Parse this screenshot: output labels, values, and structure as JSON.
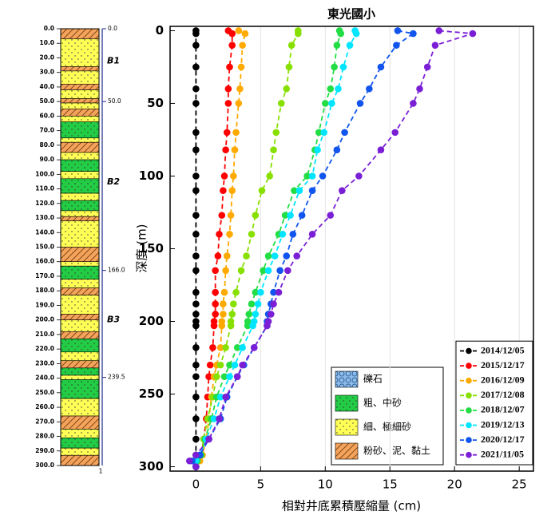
{
  "chart_data": [
    {
      "type": "strata",
      "ylim": [
        0,
        300
      ],
      "yticks": [
        {
          "value": 0,
          "label": "0.0"
        },
        {
          "value": 10,
          "label": "10.0"
        },
        {
          "value": 20,
          "label": "20.0"
        },
        {
          "value": 30,
          "label": "30.0"
        },
        {
          "value": 40,
          "label": "40.0"
        },
        {
          "value": 50,
          "label": "50.0"
        },
        {
          "value": 60,
          "label": "60.0"
        },
        {
          "value": 70,
          "label": "70.0"
        },
        {
          "value": 80,
          "label": "80.0"
        },
        {
          "value": 90,
          "label": "90.0"
        },
        {
          "value": 100,
          "label": "100.0"
        },
        {
          "value": 110,
          "label": "110.0"
        },
        {
          "value": 120,
          "label": "120.0"
        },
        {
          "value": 130,
          "label": "130.0"
        },
        {
          "value": 140,
          "label": "140.0"
        },
        {
          "value": 150,
          "label": "150.0"
        },
        {
          "value": 160,
          "label": "160.0"
        },
        {
          "value": 170,
          "label": "170.0"
        },
        {
          "value": 180,
          "label": "180.0"
        },
        {
          "value": 190,
          "label": "190.0"
        },
        {
          "value": 200,
          "label": "200.0"
        },
        {
          "value": 210,
          "label": "210.0"
        },
        {
          "value": 220,
          "label": "220.0"
        },
        {
          "value": 230,
          "label": "230.0"
        },
        {
          "value": 240,
          "label": "240.0"
        },
        {
          "value": 250,
          "label": "250.0"
        },
        {
          "value": 260,
          "label": "260.0"
        },
        {
          "value": 270,
          "label": "270.0"
        },
        {
          "value": 280,
          "label": "280.0"
        },
        {
          "value": 290,
          "label": "290.0"
        },
        {
          "value": 300,
          "label": "300.0"
        }
      ],
      "boundary_ticks": [
        {
          "value": 0,
          "label": "0.0"
        },
        {
          "value": 50,
          "label": "50.0"
        },
        {
          "value": 166,
          "label": "166.0"
        },
        {
          "value": 239.5,
          "label": "239.5"
        }
      ],
      "units": [
        {
          "label": "B1",
          "top": 0,
          "bottom": 50
        },
        {
          "label": "B2",
          "top": 50,
          "bottom": 166
        },
        {
          "label": "B3",
          "top": 166,
          "bottom": 239.5
        }
      ],
      "bottom_label": "1",
      "lithology_legend": [
        {
          "label": "礫石",
          "color": "#8cbbe8",
          "pattern": "circles"
        },
        {
          "label": "粗、中砂",
          "color": "#22cc44",
          "pattern": "dots"
        },
        {
          "label": "細、極細砂",
          "color": "#ffff55",
          "pattern": "dots"
        },
        {
          "label": "粉砂、泥、黏土",
          "color": "#f5a35a",
          "pattern": "hatch"
        }
      ],
      "layers": [
        {
          "top": 0,
          "bottom": 7,
          "lithology": "粉砂、泥、黏土"
        },
        {
          "top": 7,
          "bottom": 26,
          "lithology": "細、極細砂"
        },
        {
          "top": 26,
          "bottom": 29,
          "lithology": "粉砂、泥、黏土"
        },
        {
          "top": 29,
          "bottom": 38,
          "lithology": "細、極細砂"
        },
        {
          "top": 38,
          "bottom": 42,
          "lithology": "粉砂、泥、黏土"
        },
        {
          "top": 42,
          "bottom": 48,
          "lithology": "細、極細砂"
        },
        {
          "top": 48,
          "bottom": 51,
          "lithology": "粉砂、泥、黏土"
        },
        {
          "top": 51,
          "bottom": 55,
          "lithology": "細、極細砂"
        },
        {
          "top": 55,
          "bottom": 60,
          "lithology": "粉砂、泥、黏土"
        },
        {
          "top": 60,
          "bottom": 64,
          "lithology": "細、極細砂"
        },
        {
          "top": 64,
          "bottom": 75,
          "lithology": "粗、中砂"
        },
        {
          "top": 75,
          "bottom": 78,
          "lithology": "細、極細砂"
        },
        {
          "top": 78,
          "bottom": 85,
          "lithology": "粉砂、泥、黏土"
        },
        {
          "top": 85,
          "bottom": 90,
          "lithology": "細、極細砂"
        },
        {
          "top": 90,
          "bottom": 98,
          "lithology": "粗、中砂"
        },
        {
          "top": 98,
          "bottom": 103,
          "lithology": "細、極細砂"
        },
        {
          "top": 103,
          "bottom": 113,
          "lithology": "粗、中砂"
        },
        {
          "top": 113,
          "bottom": 118,
          "lithology": "細、極細砂"
        },
        {
          "top": 118,
          "bottom": 125,
          "lithology": "粗、中砂"
        },
        {
          "top": 125,
          "bottom": 129,
          "lithology": "細、極細砂"
        },
        {
          "top": 129,
          "bottom": 132,
          "lithology": "粉砂、泥、黏土"
        },
        {
          "top": 132,
          "bottom": 150,
          "lithology": "細、極細砂"
        },
        {
          "top": 150,
          "bottom": 160,
          "lithology": "粉砂、泥、黏土"
        },
        {
          "top": 160,
          "bottom": 163,
          "lithology": "細、極細砂"
        },
        {
          "top": 163,
          "bottom": 172,
          "lithology": "粗、中砂"
        },
        {
          "top": 172,
          "bottom": 178,
          "lithology": "細、極細砂"
        },
        {
          "top": 178,
          "bottom": 183,
          "lithology": "粉砂、泥、黏土"
        },
        {
          "top": 183,
          "bottom": 196,
          "lithology": "細、極細砂"
        },
        {
          "top": 196,
          "bottom": 200,
          "lithology": "粉砂、泥、黏土"
        },
        {
          "top": 200,
          "bottom": 208,
          "lithology": "細、極細砂"
        },
        {
          "top": 208,
          "bottom": 213,
          "lithology": "粉砂、泥、黏土"
        },
        {
          "top": 213,
          "bottom": 222,
          "lithology": "粗、中砂"
        },
        {
          "top": 222,
          "bottom": 228,
          "lithology": "細、極細砂"
        },
        {
          "top": 228,
          "bottom": 233,
          "lithology": "粉砂、泥、黏土"
        },
        {
          "top": 233,
          "bottom": 238,
          "lithology": "粗、中砂"
        },
        {
          "top": 238,
          "bottom": 241,
          "lithology": "細、極細砂"
        },
        {
          "top": 241,
          "bottom": 254,
          "lithology": "粗、中砂"
        },
        {
          "top": 254,
          "bottom": 266,
          "lithology": "細、極細砂"
        },
        {
          "top": 266,
          "bottom": 275,
          "lithology": "粉砂、泥、黏土"
        },
        {
          "top": 275,
          "bottom": 281,
          "lithology": "細、極細砂"
        },
        {
          "top": 281,
          "bottom": 288,
          "lithology": "粗、中砂"
        },
        {
          "top": 288,
          "bottom": 293,
          "lithology": "細、極細砂"
        },
        {
          "top": 293,
          "bottom": 300,
          "lithology": "粉砂、泥、黏土"
        }
      ]
    },
    {
      "type": "line",
      "title": "東光國小",
      "x_label": "相對井底累積壓縮量 (cm)",
      "y_label": "深度 (m)",
      "xlim": [
        -2,
        26.1
      ],
      "xticks": [
        0,
        5,
        10,
        15,
        20,
        25
      ],
      "ylim": [
        -3,
        303
      ],
      "y_inverted": true,
      "yticks": [
        0,
        50,
        100,
        150,
        200,
        250,
        300
      ],
      "grid": "x",
      "legend": "lower right",
      "depths": [
        0,
        2,
        10,
        25,
        40,
        50,
        70,
        82,
        100,
        110,
        127,
        140,
        155,
        165,
        180,
        188,
        195,
        200,
        203,
        218,
        230,
        238,
        252,
        267,
        281,
        292,
        296,
        300
      ],
      "series": [
        {
          "name": "2014/12/05",
          "color": "#000000",
          "values": [
            0,
            0,
            0,
            0,
            0,
            0,
            0,
            0,
            0,
            0,
            0,
            0,
            0,
            0,
            0,
            0,
            0,
            0,
            0,
            0,
            0,
            0,
            0,
            0,
            0,
            0,
            0,
            0
          ]
        },
        {
          "name": "2015/12/17",
          "color": "#ff0000",
          "values": [
            2.5,
            2.8,
            2.8,
            2.6,
            2.5,
            2.5,
            2.4,
            2.3,
            2.2,
            2.1,
            2.0,
            1.8,
            1.7,
            1.5,
            1.5,
            1.5,
            1.5,
            1.4,
            1.4,
            1.3,
            1.1,
            1.0,
            0.9,
            0.8,
            0.6,
            0.4,
            0.2,
            0
          ]
        },
        {
          "name": "2016/12/09",
          "color": "#ffaa00",
          "values": [
            3.3,
            3.8,
            3.6,
            3.5,
            3.4,
            3.3,
            3.1,
            3.0,
            2.9,
            2.8,
            2.7,
            2.6,
            2.4,
            2.3,
            2.2,
            2.1,
            2.1,
            2.0,
            2.0,
            1.9,
            1.6,
            1.4,
            1.2,
            1.0,
            0.8,
            0.5,
            0.3,
            0
          ]
        },
        {
          "name": "2017/12/08",
          "color": "#88e000",
          "values": [
            7.9,
            7.9,
            7.4,
            7.2,
            7.0,
            6.6,
            6.2,
            6.0,
            5.7,
            5.1,
            4.6,
            4.3,
            3.9,
            3.5,
            3.1,
            2.9,
            2.8,
            2.7,
            2.7,
            2.3,
            1.9,
            1.6,
            1.3,
            0.9,
            0.6,
            0.4,
            0.1,
            0
          ]
        },
        {
          "name": "2018/12/07",
          "color": "#22dd44",
          "values": [
            11.1,
            11.2,
            10.9,
            10.7,
            10.4,
            10.0,
            9.5,
            9.2,
            8.6,
            7.6,
            6.9,
            6.4,
            5.6,
            5.2,
            4.6,
            4.3,
            4.1,
            4.0,
            4.0,
            3.2,
            2.6,
            2.2,
            1.6,
            1.2,
            0.7,
            0.4,
            0.1,
            0
          ]
        },
        {
          "name": "2019/12/13",
          "color": "#00e5ff",
          "values": [
            12.3,
            12.4,
            11.9,
            11.4,
            11.0,
            10.5,
            9.9,
            9.4,
            9.0,
            8.0,
            7.3,
            6.7,
            6.1,
            5.6,
            5.0,
            4.8,
            4.6,
            4.5,
            4.4,
            3.6,
            3.0,
            2.6,
            1.9,
            1.4,
            0.8,
            0.3,
            0.0,
            0
          ]
        },
        {
          "name": "2020/12/17",
          "color": "#1155ee",
          "values": [
            15.6,
            16.8,
            15.5,
            14.3,
            13.4,
            12.7,
            11.5,
            10.9,
            9.8,
            9.0,
            8.2,
            7.5,
            7.0,
            6.5,
            6.0,
            5.8,
            5.6,
            5.5,
            5.5,
            4.5,
            3.7,
            3.2,
            2.4,
            1.9,
            1.0,
            0.3,
            -0.3,
            0
          ]
        },
        {
          "name": "2021/11/05",
          "color": "#7a1fd6",
          "values": [
            18.8,
            21.4,
            18.5,
            17.9,
            17.3,
            16.8,
            15.4,
            14.3,
            12.6,
            11.3,
            10.4,
            9.0,
            7.8,
            7.1,
            6.4,
            6.0,
            5.8,
            5.6,
            5.5,
            4.5,
            3.6,
            3.2,
            2.3,
            1.8,
            1.0,
            0.0,
            -0.5,
            0
          ]
        }
      ]
    }
  ]
}
